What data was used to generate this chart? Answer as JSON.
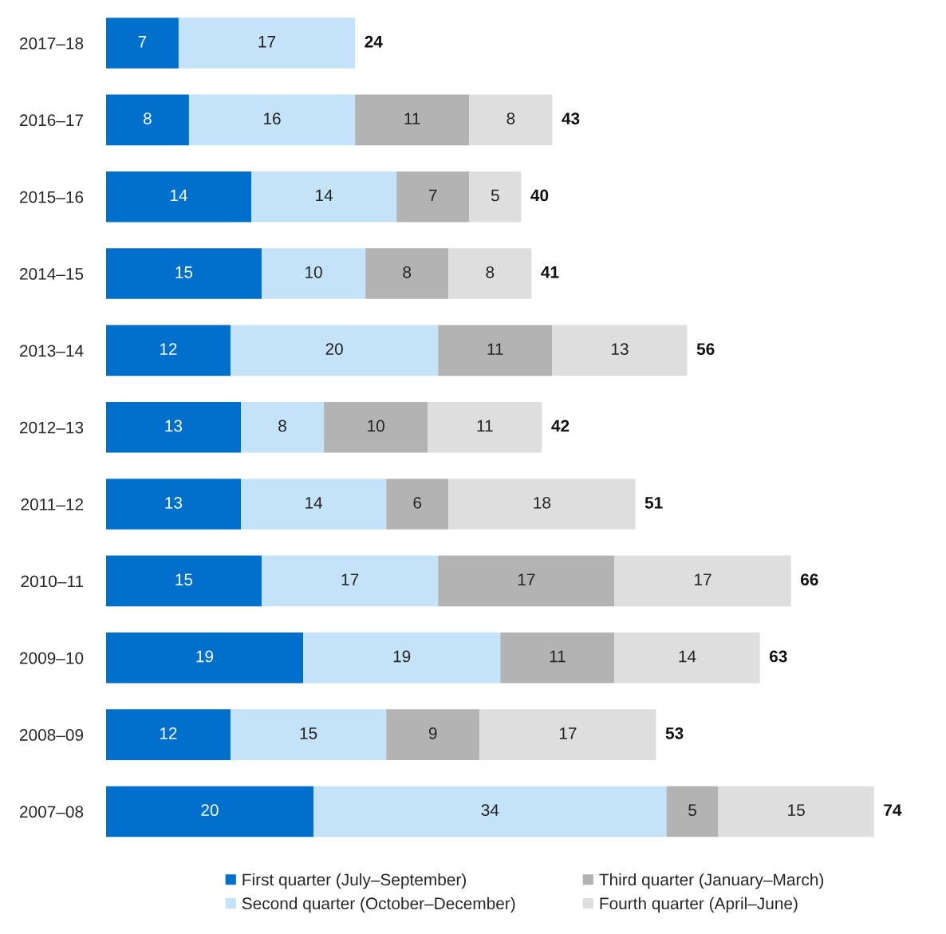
{
  "chart_data": {
    "type": "bar",
    "orientation": "horizontal",
    "stacked": true,
    "categories": [
      "2017–18",
      "2016–17",
      "2015–16",
      "2014–15",
      "2013–14",
      "2012–13",
      "2011–12",
      "2010–11",
      "2009–10",
      "2008–09",
      "2007–08"
    ],
    "series": [
      {
        "name": "First quarter (July–September)",
        "color": "#0070cc",
        "values": [
          7,
          8,
          14,
          15,
          12,
          13,
          13,
          15,
          19,
          12,
          20
        ]
      },
      {
        "name": "Second quarter (October–December)",
        "color": "#c5e3f8",
        "values": [
          17,
          16,
          14,
          10,
          20,
          8,
          14,
          17,
          19,
          15,
          34
        ]
      },
      {
        "name": "Third quarter (January–March)",
        "color": "#b3b3b3",
        "values": [
          null,
          11,
          7,
          8,
          11,
          10,
          6,
          17,
          11,
          9,
          5
        ]
      },
      {
        "name": "Fourth quarter (April–June)",
        "color": "#dedede",
        "values": [
          null,
          8,
          5,
          8,
          13,
          11,
          18,
          17,
          14,
          17,
          15
        ]
      }
    ],
    "totals": [
      "24",
      "43",
      "40",
      "41",
      "56",
      "42",
      "51",
      "66",
      "63",
      "53",
      "74"
    ],
    "data_labels": true,
    "legend": "bottom",
    "grid": false,
    "tick_labels": "y"
  }
}
